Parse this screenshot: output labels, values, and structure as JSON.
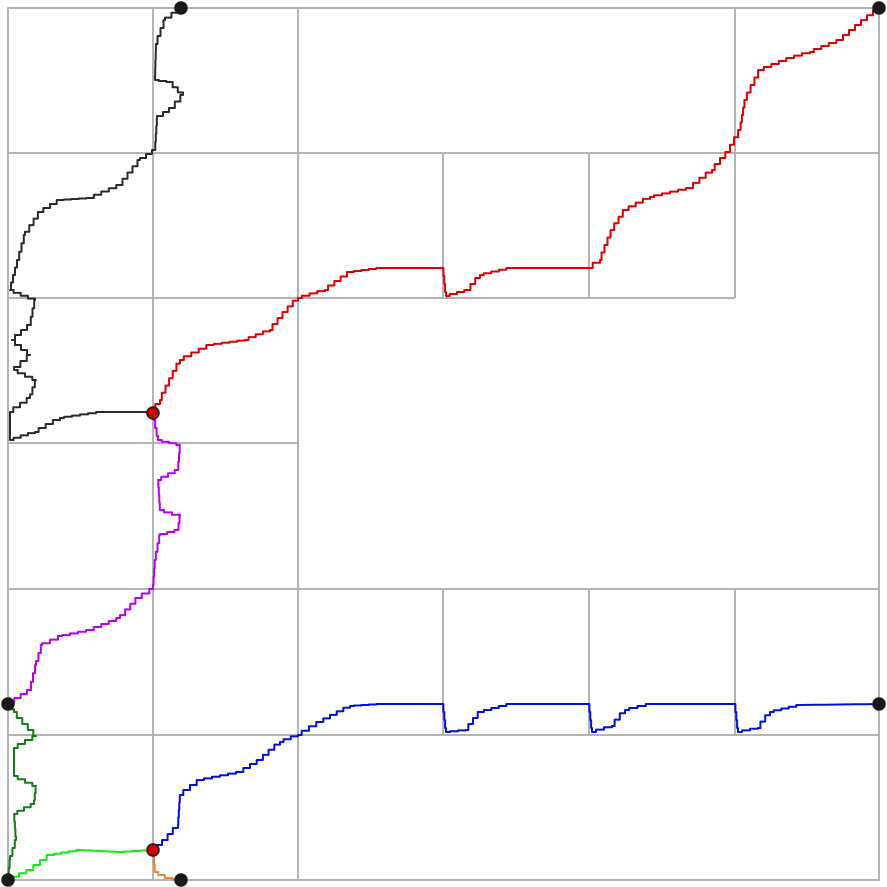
{
  "colors": {
    "background": "#ffffff",
    "grid": "#b4b4b4",
    "node": "#1a1a1a",
    "node_red": "#d40000",
    "black_path": "#2a2a2a",
    "red_path": "#e00000",
    "purple_path": "#bb00ee",
    "green_path": "#1a7a1a",
    "lime_path": "#11ee11",
    "orange_path": "#ee8833",
    "blue_path": "#0011dd"
  }
}
